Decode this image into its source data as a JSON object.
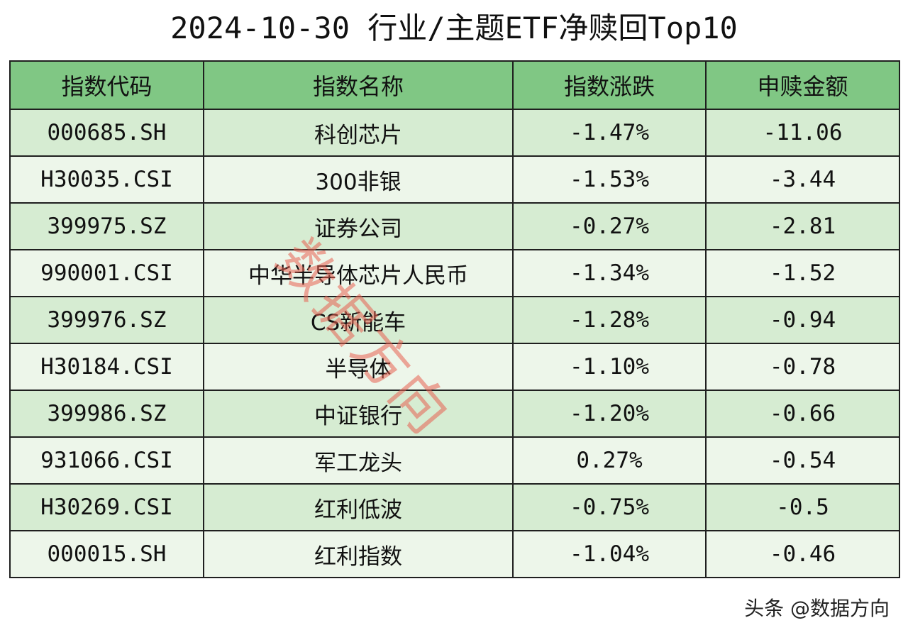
{
  "title": "2024-10-30 行业/主题ETF净赎回Top10",
  "table": {
    "headers": [
      "指数代码",
      "指数名称",
      "指数涨跌",
      "申赎金额"
    ],
    "rows": [
      {
        "code": "000685.SH",
        "name": "科创芯片",
        "change": "-1.47%",
        "amount": "-11.06"
      },
      {
        "code": "H30035.CSI",
        "name": "300非银",
        "change": "-1.53%",
        "amount": "-3.44"
      },
      {
        "code": "399975.SZ",
        "name": "证券公司",
        "change": "-0.27%",
        "amount": "-2.81"
      },
      {
        "code": "990001.CSI",
        "name": "中华半导体芯片人民币",
        "change": "-1.34%",
        "amount": "-1.52"
      },
      {
        "code": "399976.SZ",
        "name": "CS新能车",
        "change": "-1.28%",
        "amount": "-0.94"
      },
      {
        "code": "H30184.CSI",
        "name": "半导体",
        "change": "-1.10%",
        "amount": "-0.78"
      },
      {
        "code": "399986.SZ",
        "name": "中证银行",
        "change": "-1.20%",
        "amount": "-0.66"
      },
      {
        "code": "931066.CSI",
        "name": "军工龙头",
        "change": "0.27%",
        "amount": "-0.54"
      },
      {
        "code": "H30269.CSI",
        "name": "红利低波",
        "change": "-0.75%",
        "amount": "-0.5"
      },
      {
        "code": "000015.SH",
        "name": "红利指数",
        "change": "-1.04%",
        "amount": "-0.46"
      }
    ]
  },
  "watermark": "数据方向",
  "footer": "头条 @数据方向",
  "colors": {
    "header_bg": "#80c784",
    "row_odd_bg": "#d6ecd2",
    "row_even_bg": "#edf6ea",
    "watermark": "#e86050"
  }
}
